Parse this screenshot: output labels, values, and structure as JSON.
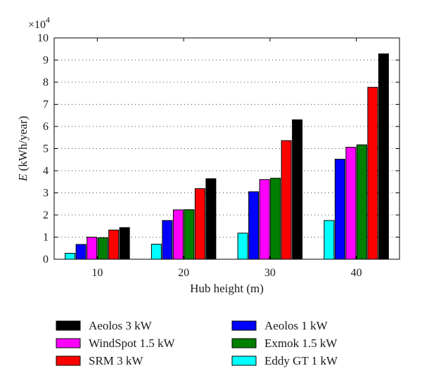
{
  "chart_data": {
    "type": "bar",
    "categories": [
      "10",
      "20",
      "30",
      "40"
    ],
    "series": [
      {
        "name": "Eddy GT 1 kW",
        "color": "#00ffff",
        "values": [
          2700,
          6800,
          11800,
          17500
        ]
      },
      {
        "name": "Aeolos 1 kW",
        "color": "#0000ff",
        "values": [
          6700,
          17500,
          30500,
          45200
        ]
      },
      {
        "name": "WindSpot 1.5 kW",
        "color": "#ff00ff",
        "values": [
          10000,
          22300,
          36000,
          50600
        ]
      },
      {
        "name": "Exmok 1.5 kW",
        "color": "#007f00",
        "values": [
          9700,
          22400,
          36600,
          51700
        ]
      },
      {
        "name": "SRM 3 kW",
        "color": "#ff0000",
        "values": [
          13200,
          31900,
          53600,
          77700
        ]
      },
      {
        "name": "Aeolos 3 kW",
        "color": "#000000",
        "values": [
          14300,
          36400,
          63000,
          92800
        ]
      }
    ],
    "xlabel": "Hub height (m)",
    "ylabel_italic": "E",
    "ylabel_rest": " (kWh/year)",
    "ylim": [
      0,
      100000
    ],
    "y_tick_labels": [
      "0",
      "1",
      "2",
      "3",
      "4",
      "5",
      "6",
      "7",
      "8",
      "9",
      "10"
    ],
    "y_multiplier_base": "×10",
    "y_multiplier_exp": "4",
    "grid": "dotted horizontal",
    "legend_order": [
      5,
      2,
      4,
      1,
      3,
      0
    ],
    "legend_placement": "below"
  }
}
